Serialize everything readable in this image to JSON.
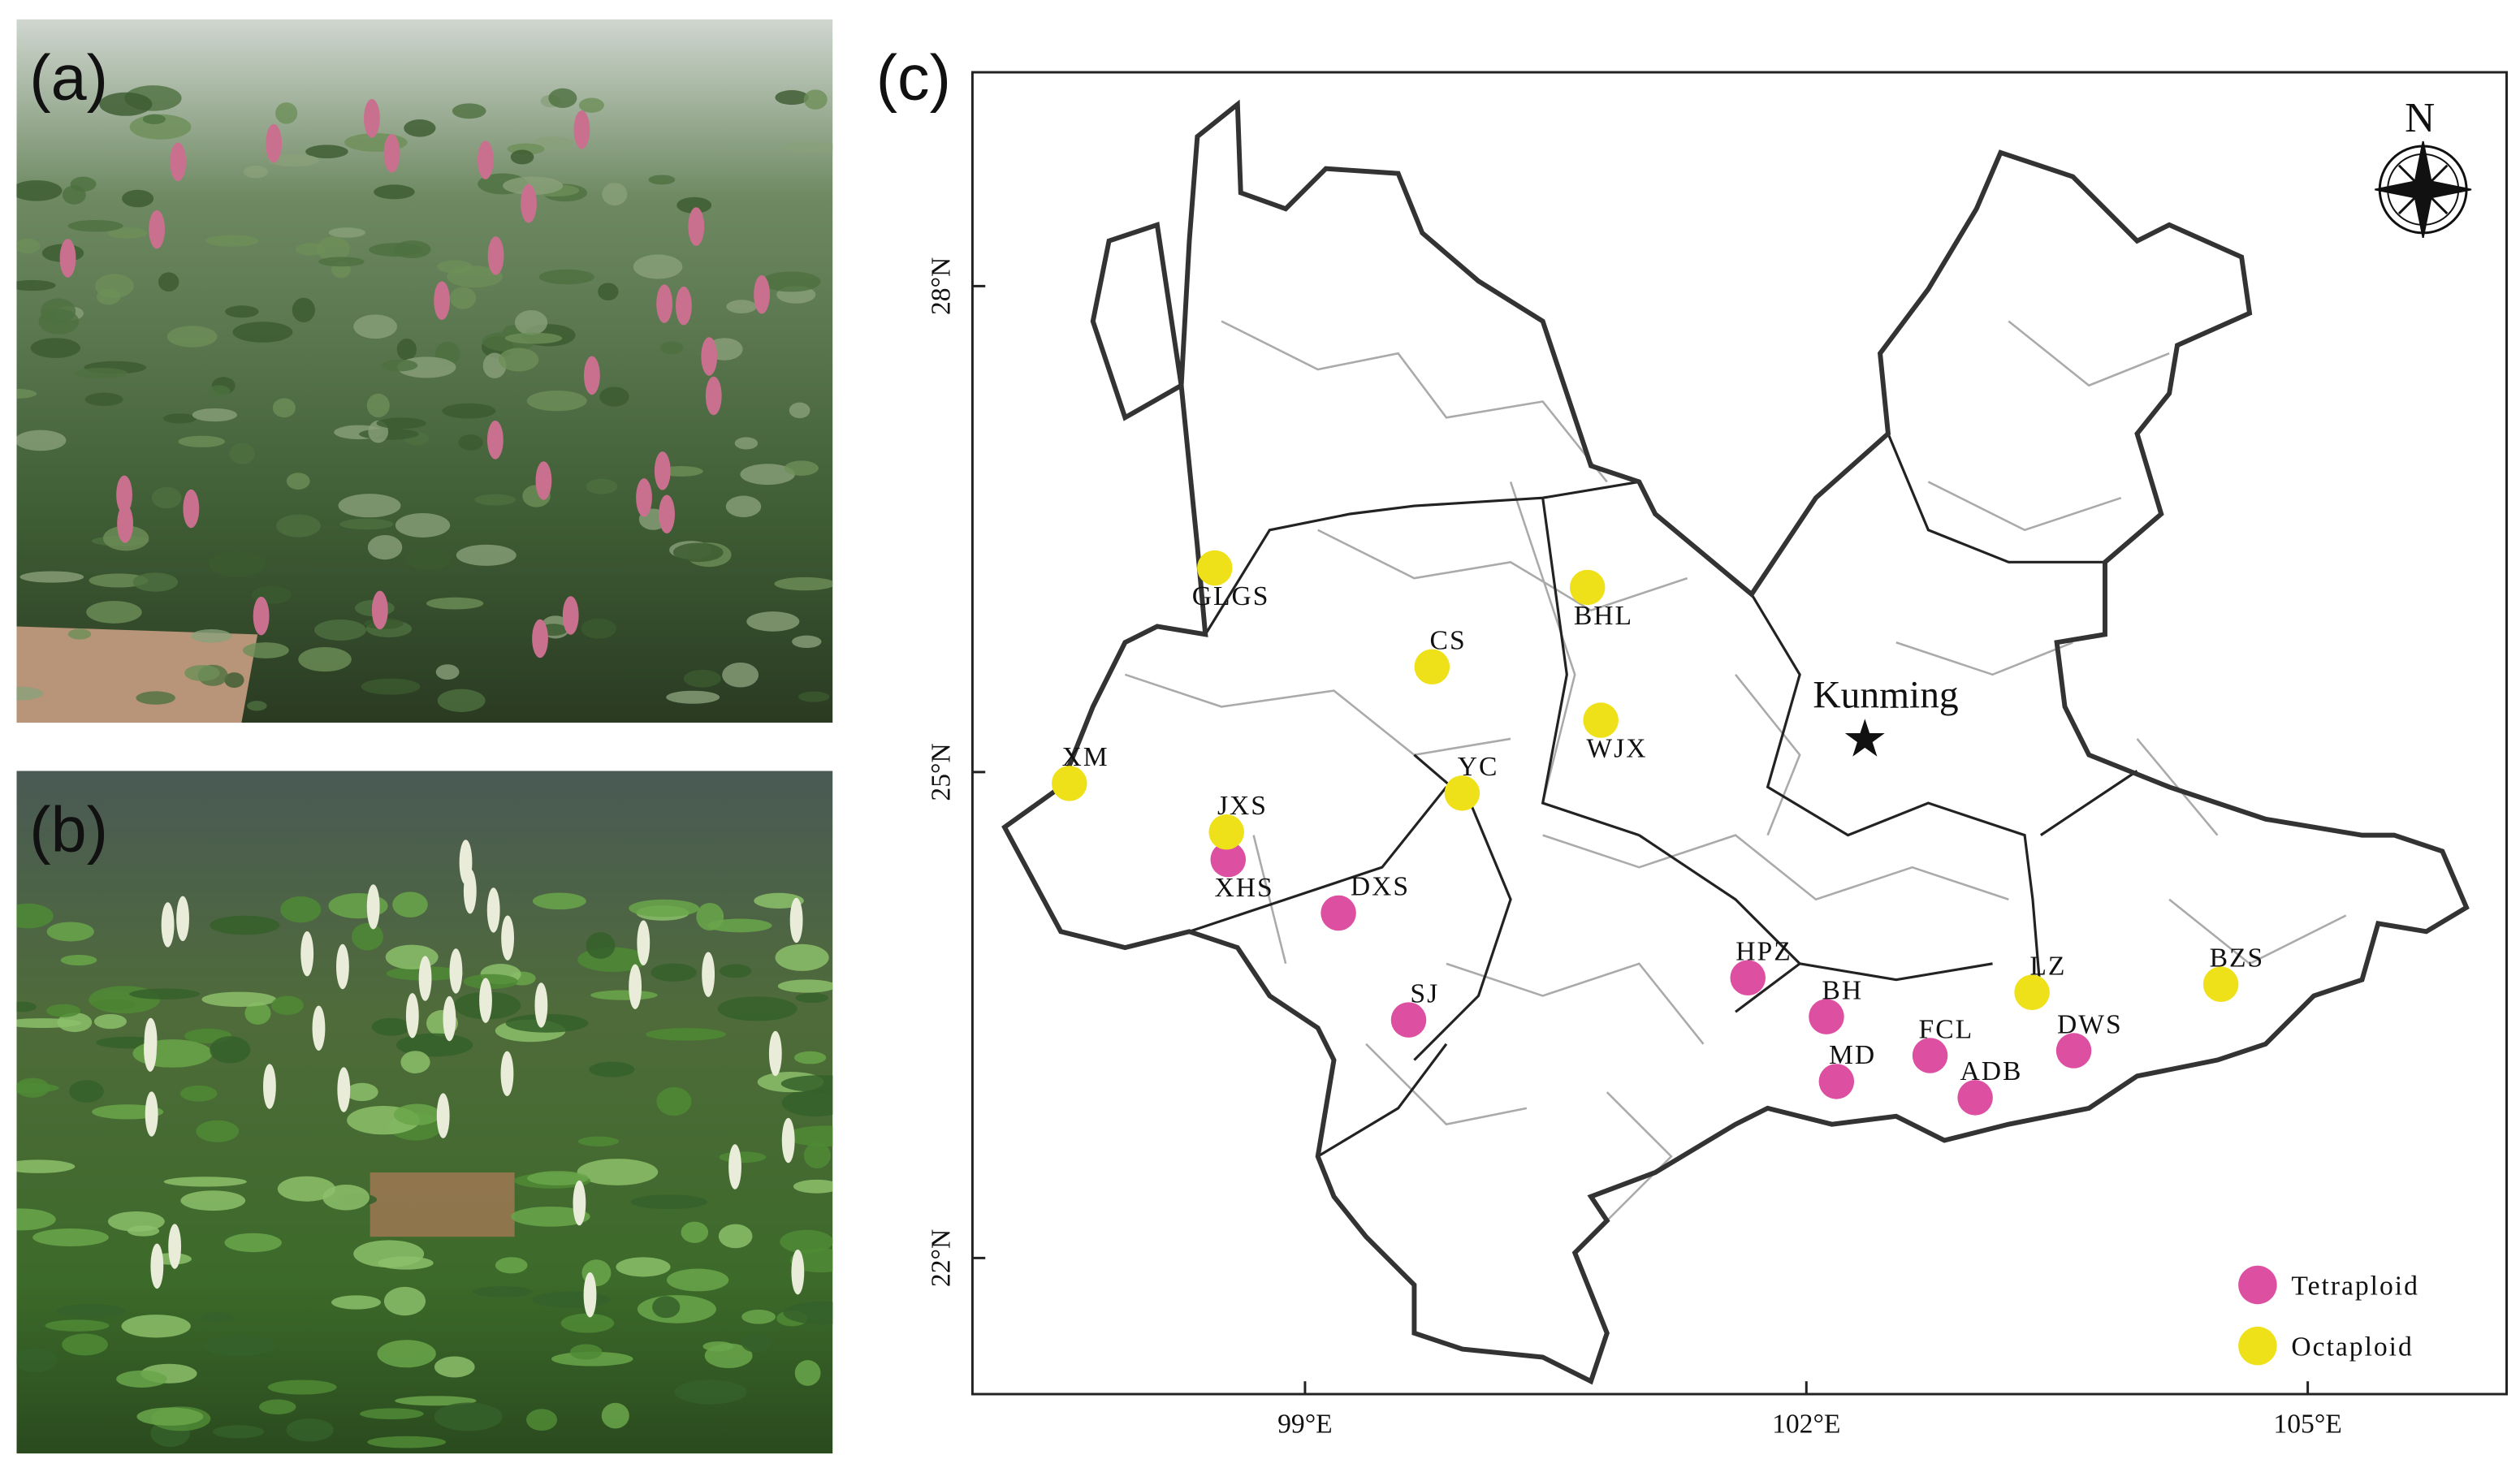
{
  "panels": {
    "a": "(a)",
    "b": "(b)",
    "c": "(c)"
  },
  "map": {
    "xlim": [
      97.01,
      106.19
    ],
    "ylim": [
      21.16,
      29.32
    ],
    "xticks": [
      {
        "value": 99,
        "label": "99°E"
      },
      {
        "value": 102,
        "label": "102°E"
      },
      {
        "value": 105,
        "label": "105°E"
      }
    ],
    "yticks": [
      {
        "value": 22,
        "label": "22°N"
      },
      {
        "value": 25,
        "label": "25°N"
      },
      {
        "value": 28,
        "label": "28°N"
      }
    ],
    "north": "N",
    "capital": {
      "name": "Kunming",
      "lon": 102.35,
      "lat": 25.2
    },
    "legend": [
      {
        "name": "Tetraploid",
        "color": "#dd4fa0",
        "sites": [
          {
            "name": "XHS",
            "lon": 98.54,
            "lat": 24.46
          },
          {
            "name": "DXS",
            "lon": 99.2,
            "lat": 24.13
          },
          {
            "name": "SJ",
            "lon": 99.62,
            "lat": 23.47
          },
          {
            "name": "HPZ",
            "lon": 101.65,
            "lat": 23.73
          },
          {
            "name": "BH",
            "lon": 102.12,
            "lat": 23.49
          },
          {
            "name": "MD",
            "lon": 102.18,
            "lat": 23.09
          },
          {
            "name": "FCL",
            "lon": 102.74,
            "lat": 23.25
          },
          {
            "name": "ADB",
            "lon": 103.01,
            "lat": 22.99
          },
          {
            "name": "DWS",
            "lon": 103.6,
            "lat": 23.28
          }
        ]
      },
      {
        "name": "Octaploid",
        "color": "#eee11a",
        "sites": [
          {
            "name": "GLGS",
            "lon": 98.46,
            "lat": 26.26
          },
          {
            "name": "CS",
            "lon": 99.76,
            "lat": 25.65
          },
          {
            "name": "BHL",
            "lon": 100.69,
            "lat": 26.14
          },
          {
            "name": "WJX",
            "lon": 100.77,
            "lat": 25.32
          },
          {
            "name": "YC",
            "lon": 99.94,
            "lat": 24.87
          },
          {
            "name": "XM",
            "lon": 97.59,
            "lat": 24.93
          },
          {
            "name": "JXS",
            "lon": 98.53,
            "lat": 24.63
          },
          {
            "name": "LZ",
            "lon": 103.35,
            "lat": 23.64
          },
          {
            "name": "BZS",
            "lon": 104.48,
            "lat": 23.69
          }
        ]
      }
    ]
  }
}
